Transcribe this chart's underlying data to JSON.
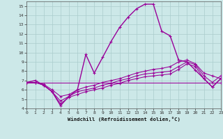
{
  "bg_color": "#cce8e8",
  "line_color": "#990099",
  "grid_color": "#aacccc",
  "xlim": [
    0,
    23
  ],
  "ylim": [
    4,
    15.5
  ],
  "xticks": [
    0,
    1,
    2,
    3,
    4,
    5,
    6,
    7,
    8,
    9,
    10,
    11,
    12,
    13,
    14,
    15,
    16,
    17,
    18,
    19,
    20,
    21,
    22,
    23
  ],
  "yticks": [
    4,
    5,
    6,
    7,
    8,
    9,
    10,
    11,
    12,
    13,
    14,
    15
  ],
  "xlabel": "Windchill (Refroidissement éolien,°C)",
  "series": [
    {
      "x": [
        0,
        1,
        2,
        3,
        4,
        5,
        6,
        7,
        8,
        9,
        10,
        11,
        12,
        13,
        14,
        15,
        16,
        17,
        18,
        19,
        20,
        21,
        22,
        23
      ],
      "y": [
        6.8,
        7.0,
        6.5,
        5.8,
        4.3,
        5.3,
        6.0,
        9.8,
        7.8,
        9.5,
        11.2,
        12.7,
        13.8,
        14.7,
        15.2,
        15.2,
        12.3,
        11.8,
        9.2,
        9.0,
        8.1,
        7.2,
        6.3,
        7.2
      ]
    },
    {
      "x": [
        0,
        1,
        2,
        3,
        4,
        5,
        6,
        7,
        8,
        9,
        10,
        11,
        12,
        13,
        14,
        15,
        16,
        17,
        18,
        19,
        20,
        21,
        22,
        23
      ],
      "y": [
        6.8,
        6.8,
        6.5,
        5.8,
        4.5,
        5.2,
        5.5,
        5.8,
        6.0,
        6.2,
        6.5,
        6.7,
        7.0,
        7.2,
        7.4,
        7.5,
        7.6,
        7.7,
        8.2,
        8.8,
        8.5,
        7.2,
        6.3,
        7.2
      ]
    },
    {
      "x": [
        0,
        1,
        2,
        3,
        4,
        5,
        6,
        7,
        8,
        9,
        10,
        11,
        12,
        13,
        14,
        15,
        16,
        17,
        18,
        19,
        20,
        21,
        22,
        23
      ],
      "y": [
        6.8,
        6.8,
        6.5,
        5.8,
        4.8,
        5.3,
        5.8,
        6.0,
        6.2,
        6.5,
        6.7,
        7.0,
        7.2,
        7.5,
        7.7,
        7.8,
        7.9,
        8.0,
        8.5,
        9.0,
        8.7,
        7.5,
        6.8,
        7.5
      ]
    },
    {
      "x": [
        0,
        1,
        2,
        3,
        4,
        5,
        6,
        7,
        8,
        9,
        10,
        11,
        12,
        13,
        14,
        15,
        16,
        17,
        18,
        19,
        20,
        21,
        22,
        23
      ],
      "y": [
        6.8,
        6.8,
        6.6,
        6.0,
        5.3,
        5.5,
        6.0,
        6.3,
        6.5,
        6.8,
        7.0,
        7.2,
        7.5,
        7.8,
        8.0,
        8.2,
        8.3,
        8.5,
        9.0,
        9.2,
        8.8,
        7.8,
        7.5,
        7.2
      ]
    },
    {
      "x": [
        0,
        23
      ],
      "y": [
        6.8,
        6.8
      ]
    }
  ]
}
